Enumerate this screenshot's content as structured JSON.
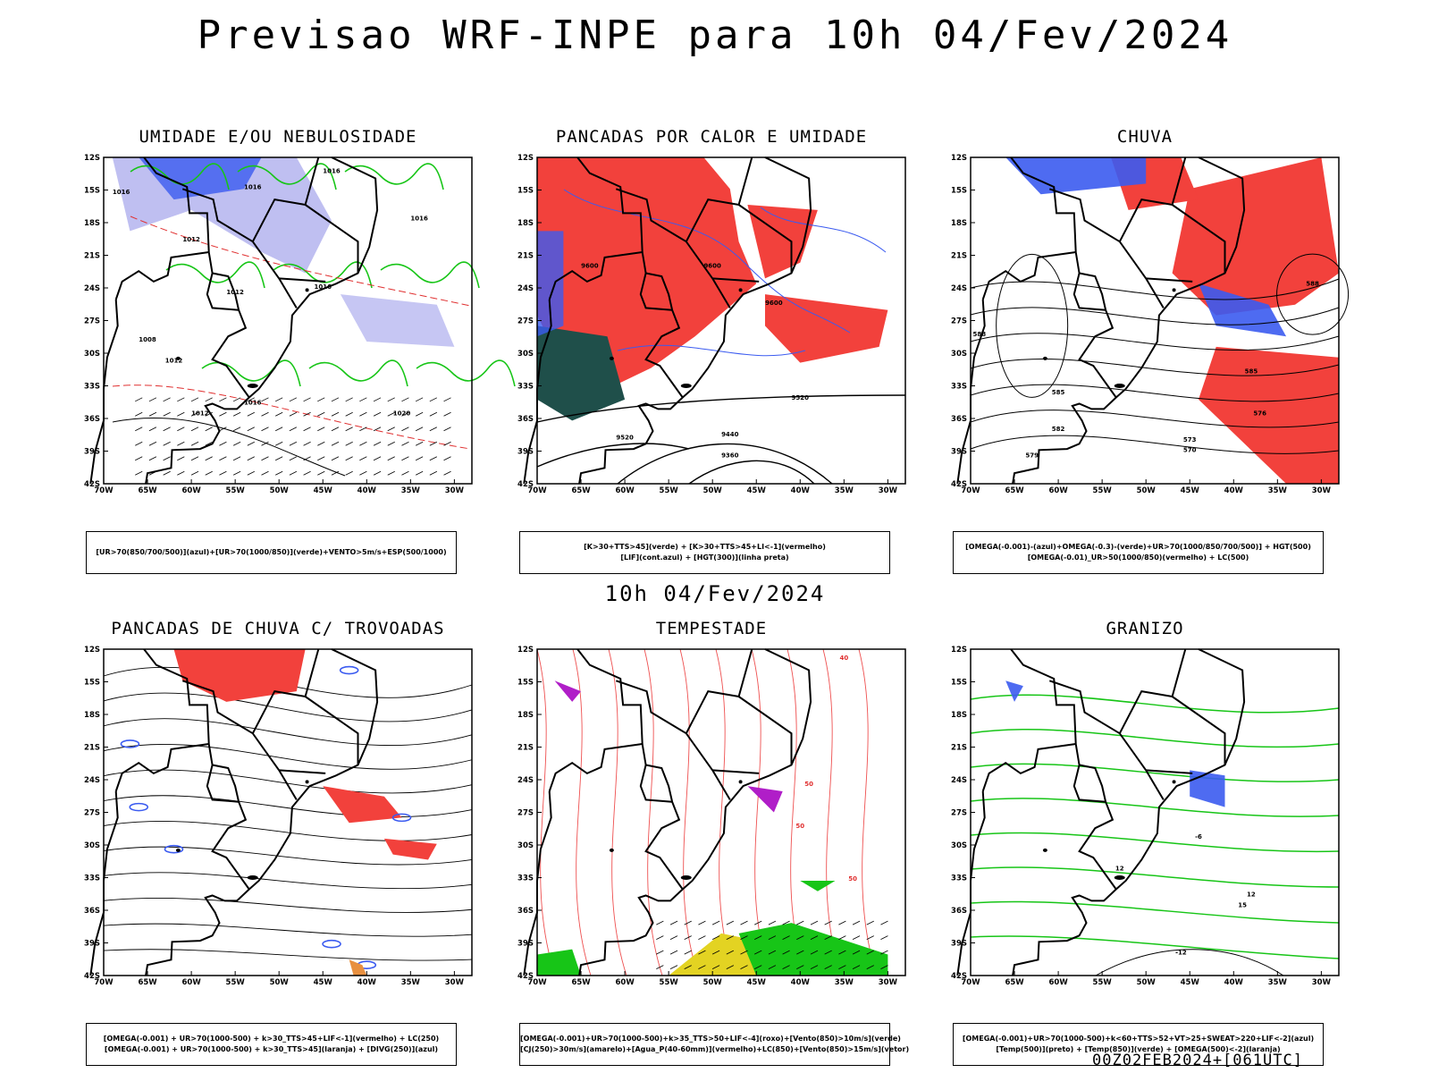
{
  "header": {
    "title": "Previsao WRF-INPE  para 10h 04/Fev/2024"
  },
  "middle_label": "10h 04/Fev/2024",
  "footer": "00Z02FEB2024+[061UTC]",
  "axes": {
    "lat_labels": [
      "12S",
      "15S",
      "18S",
      "21S",
      "24S",
      "27S",
      "30S",
      "33S",
      "36S",
      "39S",
      "42S"
    ],
    "lon_labels": [
      "70W",
      "65W",
      "60W",
      "55W",
      "50W",
      "45W",
      "40W",
      "35W",
      "30W"
    ]
  },
  "colors": {
    "red": "#f2413c",
    "blue": "#3b5bf0",
    "green": "#17c517",
    "lavender": "#b8b8f0",
    "darkgreen": "#1f4f4a",
    "yellow": "#e3d322",
    "purple": "#b01ec8"
  },
  "panels": [
    {
      "title": "UMIDADE E/OU NEBULOSIDADE",
      "legend": [
        "[UR>70(850/700/500)](azul)+[UR>70(1000/850)](verde)+VENTO>5m/s+ESP(500/1000)"
      ],
      "contour_labels": [
        "1016",
        "1016",
        "1016",
        "1012",
        "1012",
        "1008",
        "1012",
        "1016",
        "1020",
        "1016",
        "1016",
        "1012"
      ]
    },
    {
      "title": "PANCADAS POR CALOR E UMIDADE",
      "legend": [
        "[K>30+TTS>45](verde) + [K>30+TTS>45+LI<-1](vermelho)",
        "[LIF](cont.azul) + [HGT(300)](linha preta)"
      ],
      "contour_labels": [
        "9600",
        "9600",
        "9600",
        "9520",
        "9440",
        "9360",
        "9520"
      ]
    },
    {
      "title": "CHUVA",
      "legend": [
        "[OMEGA(-0.001)-(azul)+OMEGA(-0.3)-(verde)+UR>70(1000/850/700/500)] + HGT(500)",
        "[OMEGA(-0.01)_UR>50(1000/850)(vermelho) + LC(500)"
      ],
      "contour_labels": [
        "585",
        "582",
        "579",
        "576",
        "573",
        "570",
        "588",
        "588",
        "585"
      ]
    },
    {
      "title": "PANCADAS DE CHUVA C/ TROVOADAS",
      "legend": [
        "[OMEGA(-0.001) + UR>70(1000-500) + k>30_TTS>45+LIF<-1](vermelho) + LC(250)",
        "[OMEGA(-0.001) + UR>70(1000-500) + k>30_TTS>45](laranja) + [DIVG(250)](azul)"
      ],
      "contour_labels": []
    },
    {
      "title": "TEMPESTADE",
      "legend": [
        "[OMEGA(-0.001)+UR>70(1000-500)+k>35_TTS>50+LIF<-4](roxo)+[Vento(850)>10m/s](verde)",
        "[CJ(250)>30m/s](amarelo)+[Agua_P(40-60mm)](vermelho)+LC(850)+[Vento(850)>15m/s](vetor)"
      ],
      "contour_labels": [
        "50",
        "50",
        "40",
        "50"
      ]
    },
    {
      "title": "GRANIZO",
      "legend": [
        "[OMEGA(-0.001)+UR>70(1000-500)+k<60+TTS>52+VT>25+SWEAT>220+LIF<-2](azul)",
        "[Temp(500)](preto) + [Temp(850)](verde) + [OMEGA(500)<-2](laranja)"
      ],
      "contour_labels": [
        "-6",
        "12",
        "12",
        "15",
        "-12"
      ]
    }
  ]
}
